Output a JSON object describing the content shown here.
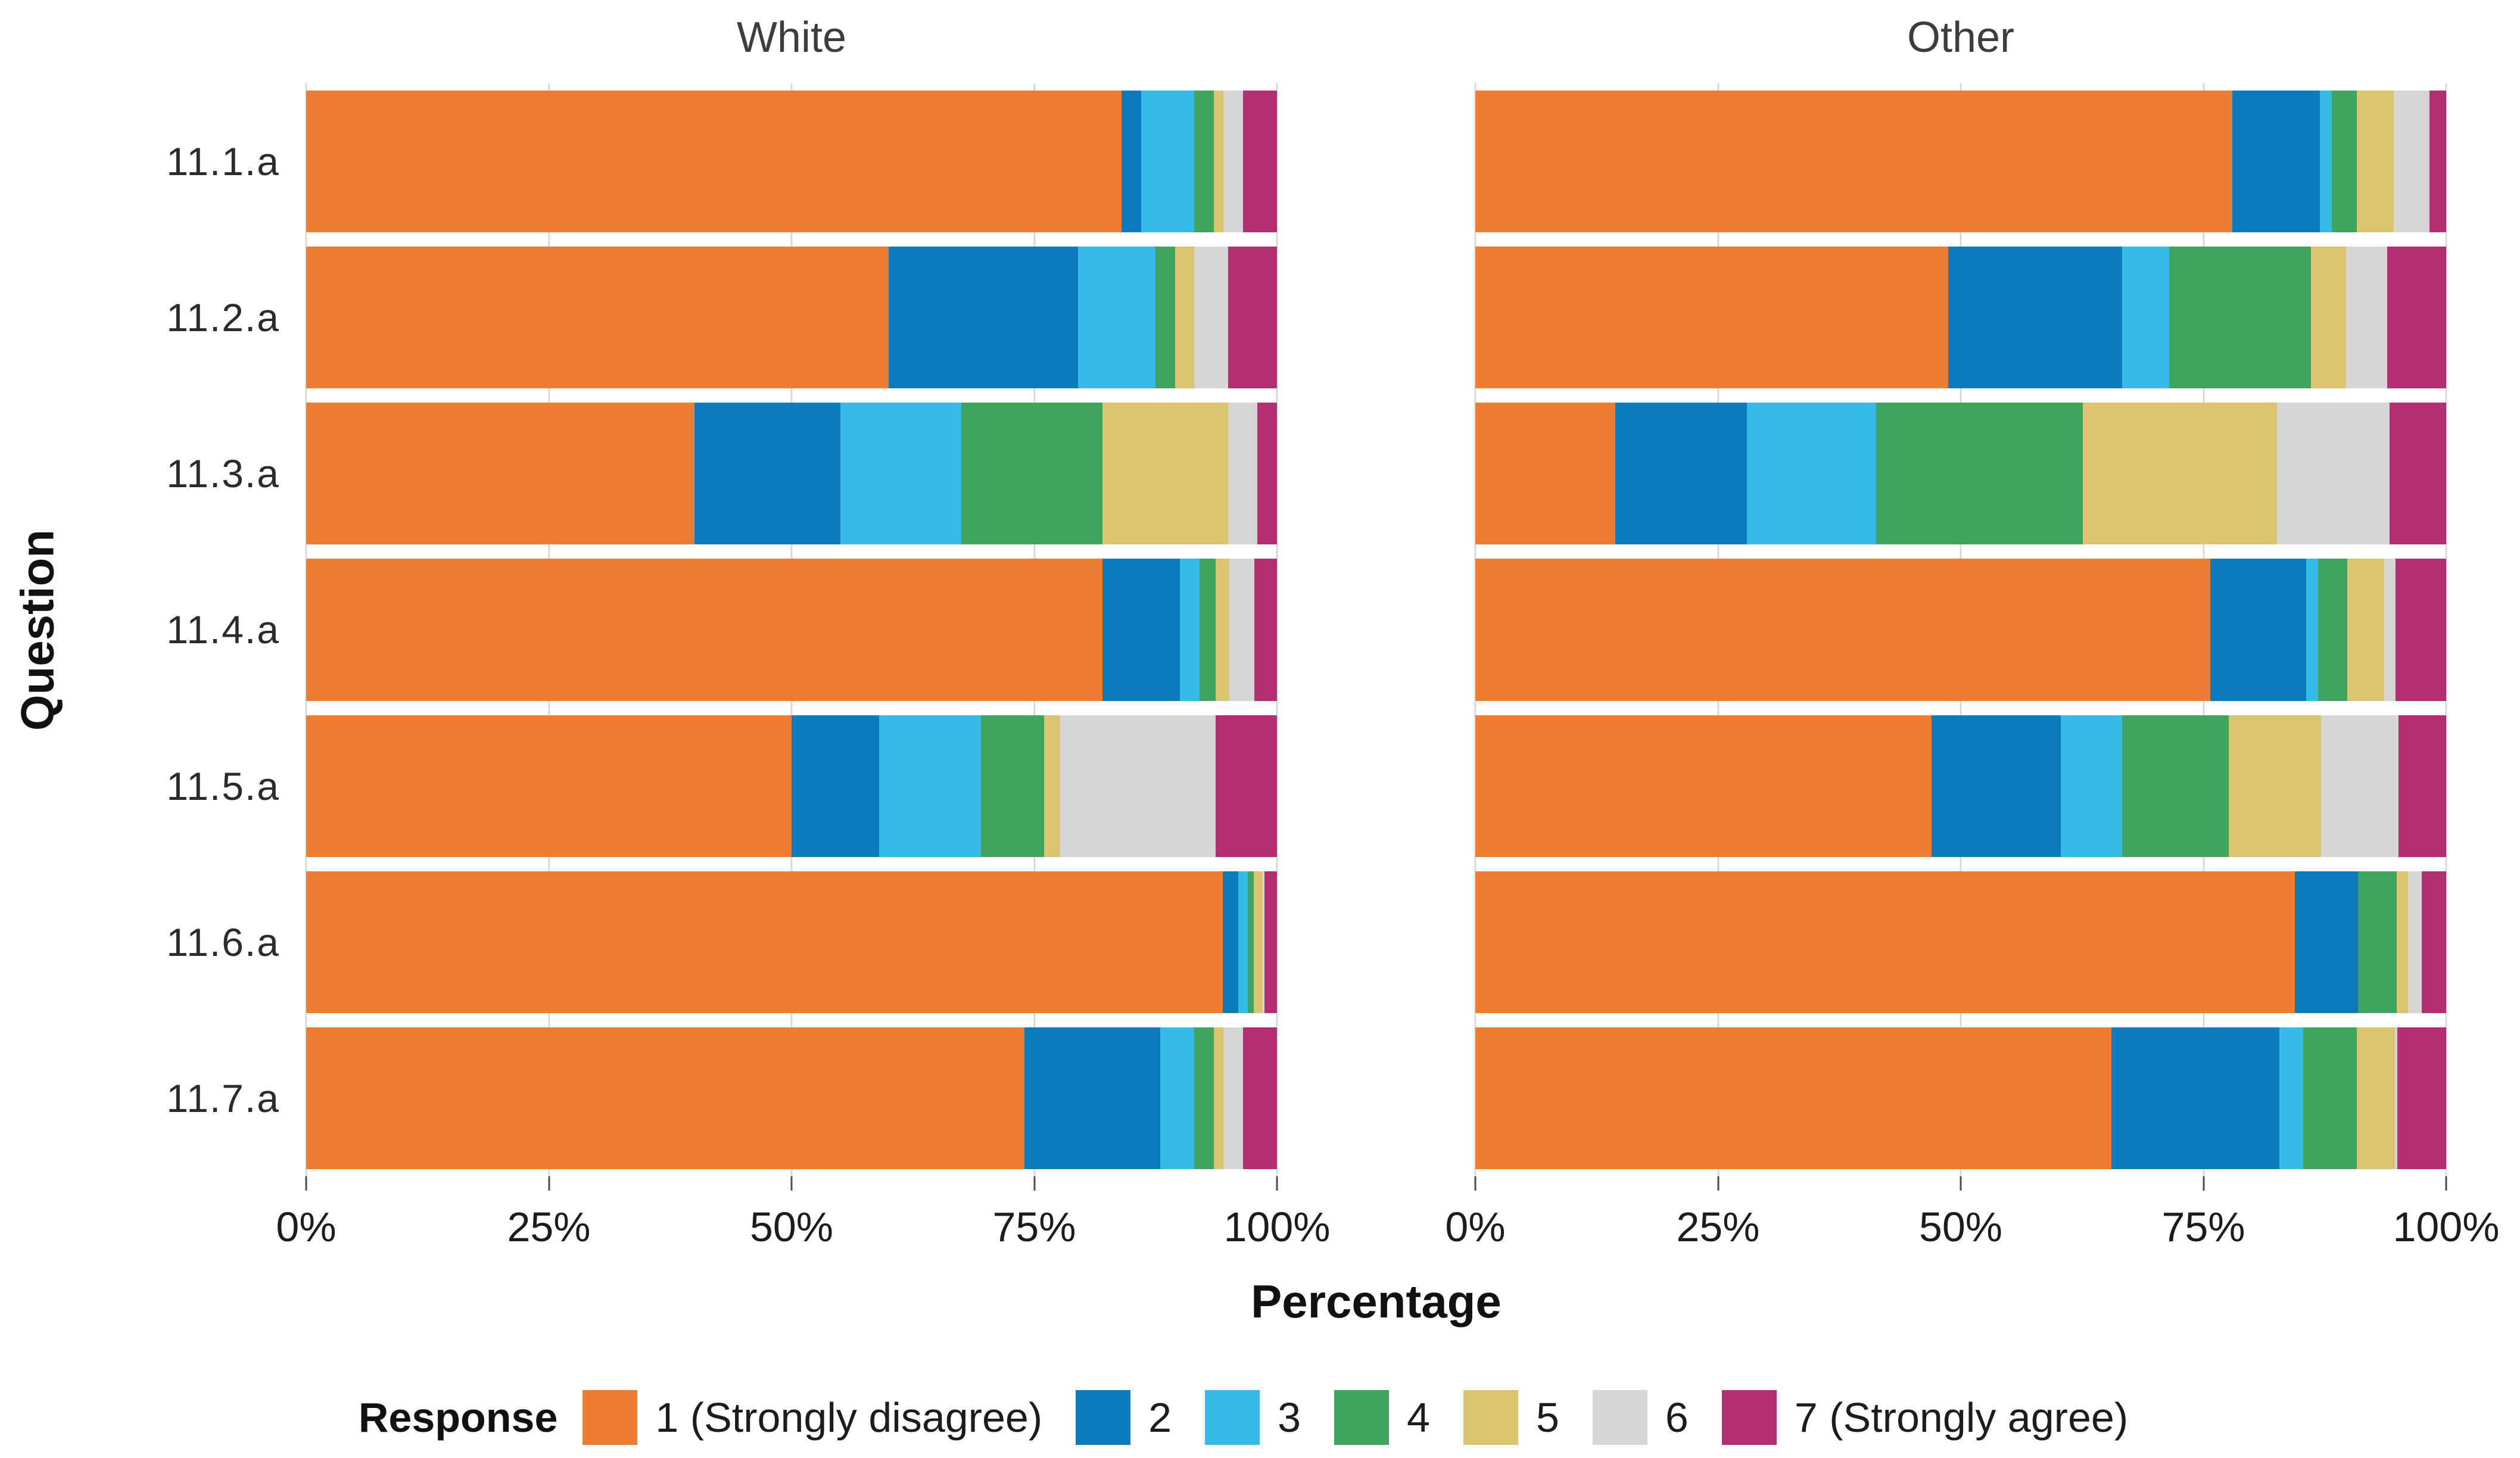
{
  "figure": {
    "facet_titles": [
      "White",
      "Other"
    ],
    "x_axis": {
      "label": "Percentage",
      "ticks": [
        "0%",
        "25%",
        "50%",
        "75%",
        "100%"
      ],
      "tick_positions": [
        0,
        25,
        50,
        75,
        100
      ]
    },
    "y_axis": {
      "label": "Question",
      "categories": [
        "11.1.a",
        "11.2.a",
        "11.3.a",
        "11.4.a",
        "11.5.a",
        "11.6.a",
        "11.7.a"
      ]
    },
    "legend": {
      "title": "Response",
      "items": [
        {
          "label": "1 (Strongly disagree)",
          "color": "#ED7D31"
        },
        {
          "label": "2",
          "color": "#0C7BBC"
        },
        {
          "label": "3",
          "color": "#37B9EA"
        },
        {
          "label": "4",
          "color": "#3FA45C"
        },
        {
          "label": "5",
          "color": "#DCC46E"
        },
        {
          "label": "6",
          "color": "#D6D6D6"
        },
        {
          "label": "7 (Strongly agree)",
          "color": "#B22D72"
        }
      ]
    },
    "gridline_color": "#d8d8d8"
  },
  "chart_data": {
    "type": "bar",
    "orientation": "horizontal",
    "stacked": true,
    "unit": "percent",
    "x_range": [
      0,
      100
    ],
    "legend_position": "bottom",
    "series_names": [
      "1 (Strongly disagree)",
      "2",
      "3",
      "4",
      "5",
      "6",
      "7 (Strongly agree)"
    ],
    "facets": [
      {
        "title": "White",
        "rows": [
          {
            "question": "11.1.a",
            "values": [
              84,
              2,
              5.5,
              2,
              1,
              2,
              3.5
            ]
          },
          {
            "question": "11.2.a",
            "values": [
              60,
              19.5,
              8,
              2,
              2,
              3.5,
              5
            ]
          },
          {
            "question": "11.3.a",
            "values": [
              40,
              15,
              12.5,
              14.5,
              13,
              3,
              2
            ]
          },
          {
            "question": "11.4.a",
            "values": [
              82,
              8,
              2,
              1.7,
              1.4,
              2.6,
              2.3
            ]
          },
          {
            "question": "11.5.a",
            "values": [
              50,
              9,
              10.5,
              6.5,
              1.7,
              16,
              6.3
            ]
          },
          {
            "question": "11.6.a",
            "values": [
              94.4,
              1.6,
              1,
              0.6,
              0.9,
              0.2,
              1.3
            ]
          },
          {
            "question": "11.7.a",
            "values": [
              74,
              14,
              3.5,
              2,
              1,
              2,
              3.5
            ]
          }
        ]
      },
      {
        "title": "Other",
        "rows": [
          {
            "question": "11.1.a",
            "values": [
              78,
              9,
              1.2,
              2.6,
              3.8,
              3.7,
              1.7
            ]
          },
          {
            "question": "11.2.a",
            "values": [
              48.7,
              17.9,
              4.9,
              14.6,
              3.6,
              4.2,
              6.1
            ]
          },
          {
            "question": "11.3.a",
            "values": [
              14.4,
              13.6,
              13.3,
              21.3,
              20,
              11.6,
              5.8
            ]
          },
          {
            "question": "11.4.a",
            "values": [
              75.7,
              9.9,
              1.2,
              3,
              3.8,
              1.2,
              5.2
            ]
          },
          {
            "question": "11.5.a",
            "values": [
              47,
              13.3,
              6.3,
              11,
              9.5,
              8,
              4.9
            ]
          },
          {
            "question": "11.6.a",
            "values": [
              84.4,
              6.5,
              0,
              4,
              1.2,
              1.4,
              2.5
            ]
          },
          {
            "question": "11.7.a",
            "values": [
              65.5,
              17.3,
              2.5,
              5.5,
              3.9,
              0.3,
              5
            ]
          }
        ]
      }
    ]
  }
}
